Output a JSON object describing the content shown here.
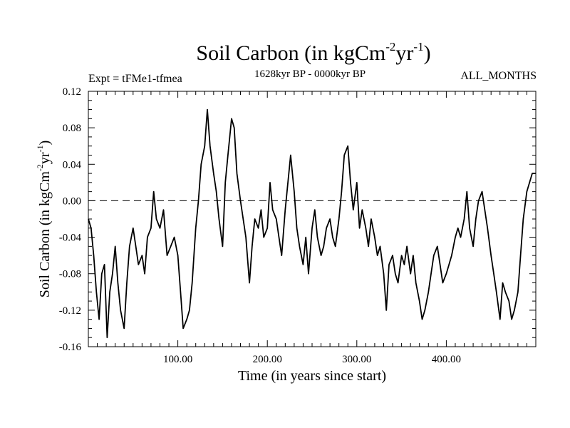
{
  "chart_data": {
    "type": "line",
    "title_main": "Soil Carbon (in kgCm",
    "title_sup1": "-2",
    "title_mid": "yr",
    "title_sup2": "-1",
    "title_close": ")",
    "expt_label": "Expt = tFMe1-tfmea",
    "period_label": "1628kyr BP - 0000kyr BP",
    "months_label": "ALL_MONTHS",
    "xlabel": "Time (in years since start)",
    "ylabel_main": "Soil Carbon (in kgCm",
    "ylabel_sup1": "-2",
    "ylabel_mid": "yr",
    "ylabel_sup2": "-1",
    "ylabel_close": ")",
    "xlim": [
      0,
      500
    ],
    "ylim": [
      -0.16,
      0.12
    ],
    "x_ticks": [
      {
        "value": 100,
        "label": "100.00"
      },
      {
        "value": 200,
        "label": "200.00"
      },
      {
        "value": 300,
        "label": "300.00"
      },
      {
        "value": 400,
        "label": "400.00"
      }
    ],
    "y_ticks": [
      {
        "value": 0.12,
        "label": "0.12"
      },
      {
        "value": 0.08,
        "label": "0.08"
      },
      {
        "value": 0.04,
        "label": "0.04"
      },
      {
        "value": 0.0,
        "label": "0.00"
      },
      {
        "value": -0.04,
        "label": "-0.04"
      },
      {
        "value": -0.08,
        "label": "-0.08"
      },
      {
        "value": -0.12,
        "label": "-0.12"
      },
      {
        "value": -0.16,
        "label": "-0.16"
      }
    ],
    "reference_line": {
      "value": 0.0,
      "style": "dashed"
    },
    "series": [
      {
        "name": "soil-carbon",
        "color": "#000000",
        "x": [
          0,
          3,
          6,
          9,
          12,
          15,
          18,
          21,
          24,
          27,
          30,
          33,
          36,
          40,
          43,
          46,
          50,
          53,
          56,
          60,
          63,
          66,
          70,
          73,
          76,
          80,
          84,
          88,
          92,
          96,
          100,
          103,
          106,
          110,
          113,
          116,
          120,
          123,
          126,
          130,
          133,
          136,
          140,
          143,
          146,
          150,
          153,
          156,
          160,
          163,
          166,
          170,
          173,
          176,
          180,
          183,
          186,
          190,
          193,
          196,
          200,
          203,
          206,
          210,
          213,
          216,
          220,
          223,
          226,
          230,
          233,
          236,
          240,
          243,
          246,
          250,
          253,
          256,
          260,
          263,
          266,
          270,
          273,
          276,
          280,
          283,
          286,
          290,
          293,
          296,
          300,
          303,
          306,
          310,
          313,
          316,
          320,
          323,
          326,
          330,
          333,
          336,
          340,
          343,
          346,
          350,
          353,
          356,
          360,
          363,
          366,
          370,
          373,
          376,
          380,
          383,
          386,
          390,
          393,
          396,
          400,
          403,
          406,
          410,
          413,
          416,
          420,
          423,
          426,
          430,
          433,
          436,
          440,
          443,
          446,
          450,
          453,
          456,
          460,
          463,
          466,
          470,
          473,
          476,
          480,
          483,
          486,
          490,
          493,
          496,
          500
        ],
        "values": [
          -0.02,
          -0.03,
          -0.06,
          -0.1,
          -0.13,
          -0.08,
          -0.07,
          -0.15,
          -0.1,
          -0.08,
          -0.05,
          -0.09,
          -0.12,
          -0.14,
          -0.09,
          -0.05,
          -0.03,
          -0.05,
          -0.07,
          -0.06,
          -0.08,
          -0.04,
          -0.03,
          0.01,
          -0.02,
          -0.03,
          -0.01,
          -0.06,
          -0.05,
          -0.04,
          -0.06,
          -0.1,
          -0.14,
          -0.13,
          -0.12,
          -0.09,
          -0.03,
          0.0,
          0.04,
          0.06,
          0.1,
          0.06,
          0.03,
          0.01,
          -0.02,
          -0.05,
          0.02,
          0.05,
          0.09,
          0.08,
          0.03,
          0.0,
          -0.02,
          -0.04,
          -0.09,
          -0.05,
          -0.02,
          -0.03,
          -0.01,
          -0.04,
          -0.03,
          0.02,
          -0.01,
          -0.02,
          -0.04,
          -0.06,
          -0.01,
          0.02,
          0.05,
          0.01,
          -0.03,
          -0.05,
          -0.07,
          -0.04,
          -0.08,
          -0.03,
          -0.01,
          -0.04,
          -0.06,
          -0.05,
          -0.03,
          -0.02,
          -0.04,
          -0.05,
          -0.02,
          0.01,
          0.05,
          0.06,
          0.02,
          -0.01,
          0.02,
          -0.03,
          -0.01,
          -0.03,
          -0.05,
          -0.02,
          -0.04,
          -0.06,
          -0.05,
          -0.08,
          -0.12,
          -0.07,
          -0.06,
          -0.08,
          -0.09,
          -0.06,
          -0.07,
          -0.05,
          -0.08,
          -0.06,
          -0.09,
          -0.11,
          -0.13,
          -0.12,
          -0.1,
          -0.08,
          -0.06,
          -0.05,
          -0.07,
          -0.09,
          -0.08,
          -0.07,
          -0.06,
          -0.04,
          -0.03,
          -0.04,
          -0.02,
          0.01,
          -0.03,
          -0.05,
          -0.02,
          0.0,
          0.01,
          -0.01,
          -0.03,
          -0.06,
          -0.08,
          -0.1,
          -0.13,
          -0.09,
          -0.1,
          -0.11,
          -0.13,
          -0.12,
          -0.1,
          -0.06,
          -0.02,
          0.01,
          0.02,
          0.03,
          0.03
        ]
      }
    ]
  }
}
